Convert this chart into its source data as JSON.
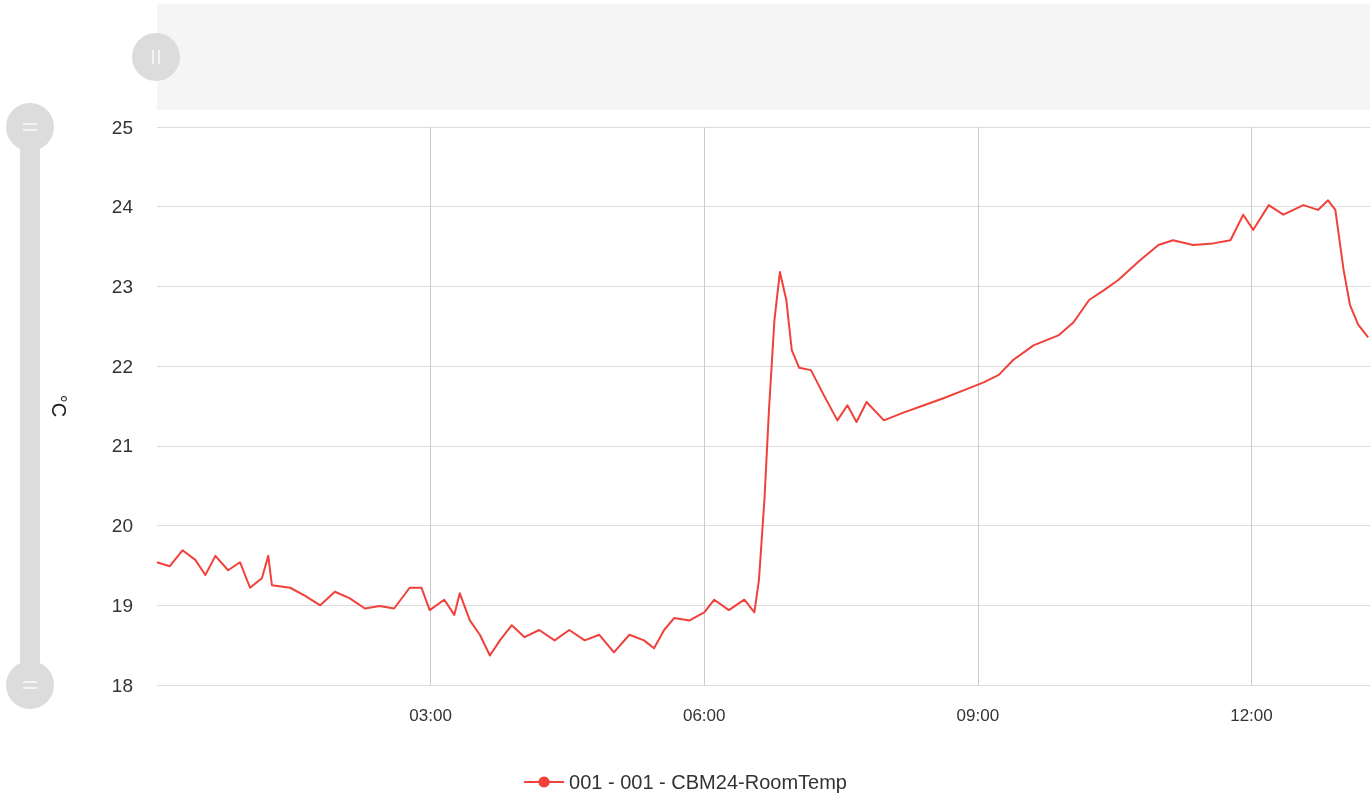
{
  "chart_data": {
    "type": "line",
    "ylabel": "°C",
    "xlim": [
      0,
      13.3
    ],
    "xticks": [
      {
        "value": 3,
        "label": "03:00"
      },
      {
        "value": 6,
        "label": "06:00"
      },
      {
        "value": 9,
        "label": "09:00"
      },
      {
        "value": 12,
        "label": "12:00"
      }
    ],
    "ylim": [
      18,
      25
    ],
    "yticks": [
      18,
      19,
      20,
      21,
      22,
      23,
      24,
      25
    ],
    "grid": true,
    "legend": "bottom",
    "series": [
      {
        "name": "001 - 001 - CBM24-RoomTemp",
        "color": "#f0413a",
        "x": [
          0,
          0.14,
          0.28,
          0.42,
          0.53,
          0.64,
          0.78,
          0.91,
          1.02,
          1.15,
          1.22,
          1.26,
          1.46,
          1.62,
          1.79,
          1.95,
          2.11,
          2.28,
          2.44,
          2.6,
          2.77,
          2.9,
          2.99,
          3.15,
          3.26,
          3.32,
          3.43,
          3.54,
          3.65,
          3.76,
          3.89,
          4.03,
          4.19,
          4.36,
          4.52,
          4.69,
          4.85,
          5.01,
          5.18,
          5.34,
          5.45,
          5.56,
          5.67,
          5.84,
          6.0,
          6.11,
          6.27,
          6.44,
          6.55,
          6.6,
          6.66,
          6.71,
          6.77,
          6.83,
          6.9,
          6.96,
          7.04,
          7.17,
          7.31,
          7.46,
          7.57,
          7.67,
          7.78,
          7.97,
          8.19,
          8.41,
          8.63,
          8.85,
          9.07,
          9.23,
          9.39,
          9.61,
          9.89,
          10.05,
          10.22,
          10.38,
          10.54,
          10.76,
          10.98,
          11.14,
          11.36,
          11.58,
          11.77,
          11.91,
          12.02,
          12.19,
          12.35,
          12.57,
          12.73,
          12.84,
          12.92,
          13.01,
          13.08,
          13.17,
          13.28
        ],
        "values": [
          19.54,
          19.49,
          19.69,
          19.57,
          19.38,
          19.62,
          19.44,
          19.54,
          19.22,
          19.34,
          19.62,
          19.25,
          19.22,
          19.12,
          19.0,
          19.17,
          19.09,
          18.96,
          18.99,
          18.96,
          19.22,
          19.22,
          18.94,
          19.07,
          18.88,
          19.15,
          18.81,
          18.63,
          18.37,
          18.56,
          18.75,
          18.6,
          18.69,
          18.56,
          18.69,
          18.56,
          18.63,
          18.41,
          18.63,
          18.56,
          18.46,
          18.69,
          18.84,
          18.81,
          18.91,
          19.07,
          18.94,
          19.07,
          18.91,
          19.32,
          20.32,
          21.45,
          22.58,
          23.18,
          22.83,
          22.2,
          21.98,
          21.95,
          21.64,
          21.32,
          21.51,
          21.3,
          21.55,
          21.32,
          21.42,
          21.51,
          21.6,
          21.7,
          21.8,
          21.89,
          22.08,
          22.26,
          22.39,
          22.55,
          22.83,
          22.95,
          23.08,
          23.31,
          23.52,
          23.58,
          23.52,
          23.54,
          23.58,
          23.9,
          23.71,
          24.02,
          23.9,
          24.02,
          23.96,
          24.08,
          23.96,
          23.21,
          22.77,
          22.52,
          22.36
        ]
      }
    ]
  }
}
